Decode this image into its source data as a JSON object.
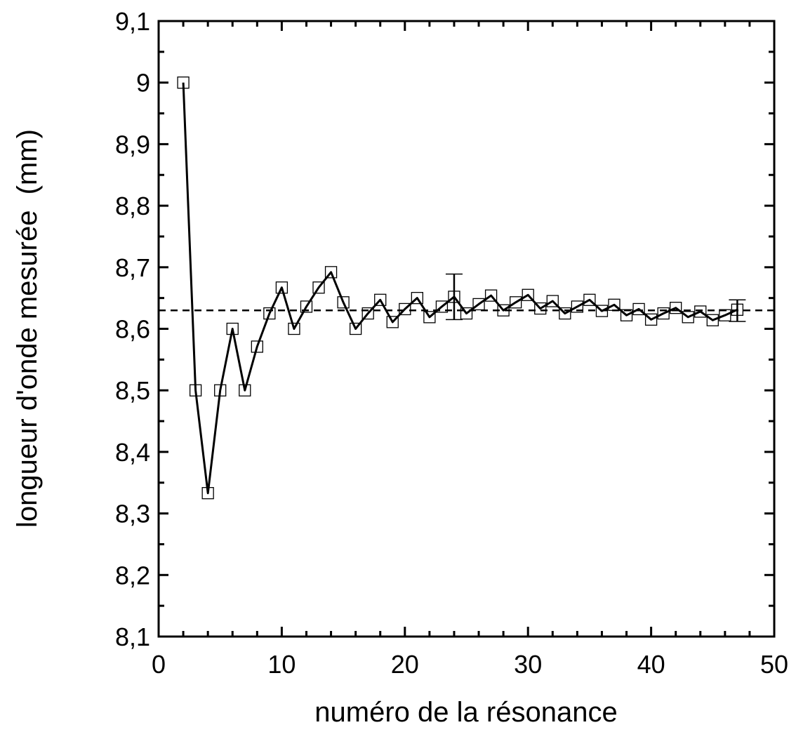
{
  "chart_data": {
    "type": "line",
    "xlabel": "numéro de la résonance",
    "ylabel": "longueur d'onde mesurée  (mm)",
    "xlim": [
      0,
      50
    ],
    "ylim": [
      8.1,
      9.1
    ],
    "x_ticks": [
      0,
      10,
      20,
      30,
      40,
      50
    ],
    "x_tick_labels": [
      "0",
      "10",
      "20",
      "30",
      "40",
      "50"
    ],
    "y_ticks": [
      8.1,
      8.2,
      8.3,
      8.4,
      8.5,
      8.6,
      8.7,
      8.8,
      8.9,
      9.0,
      9.1
    ],
    "y_tick_labels": [
      "8,1",
      "8,2",
      "8,3",
      "8,4",
      "8,5",
      "8,6",
      "8,7",
      "8,8",
      "8,9",
      "9",
      "9,1"
    ],
    "grid": false,
    "reference_line": {
      "y": 8.63,
      "style": "dashed"
    },
    "series": [
      {
        "marker": "open-square",
        "line": "solid",
        "x": [
          2,
          3,
          4,
          5,
          6,
          7,
          8,
          9,
          10,
          11,
          12,
          13,
          14,
          15,
          16,
          17,
          18,
          19,
          20,
          21,
          22,
          23,
          24,
          25,
          26,
          27,
          28,
          29,
          30,
          31,
          32,
          33,
          34,
          35,
          36,
          37,
          38,
          39,
          40,
          41,
          42,
          43,
          44,
          45,
          46,
          47
        ],
        "y": [
          9.0,
          8.5,
          8.333,
          8.5,
          8.6,
          8.5,
          8.571,
          8.625,
          8.667,
          8.6,
          8.636,
          8.667,
          8.692,
          8.643,
          8.6,
          8.625,
          8.647,
          8.611,
          8.632,
          8.65,
          8.619,
          8.636,
          8.652,
          8.625,
          8.64,
          8.654,
          8.63,
          8.643,
          8.655,
          8.633,
          8.645,
          8.625,
          8.636,
          8.647,
          8.629,
          8.639,
          8.622,
          8.632,
          8.615,
          8.625,
          8.634,
          8.619,
          8.628,
          8.614,
          8.622,
          8.631
        ]
      }
    ],
    "error_bars": [
      {
        "x": 24,
        "y": 8.652,
        "low": 8.615,
        "high": 8.689
      },
      {
        "x": 47,
        "y": 8.631,
        "low": 8.612,
        "high": 8.647
      }
    ]
  }
}
